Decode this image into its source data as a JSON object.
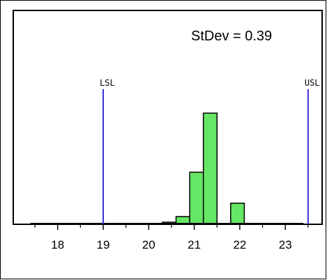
{
  "chart_data": {
    "type": "bar",
    "subtype": "histogram",
    "title": "",
    "xlabel": "",
    "ylabel": "",
    "xlim": [
      17.3,
      23.8
    ],
    "ylim": [
      0,
      100
    ],
    "grid": false,
    "annotation": "StDev = 0.39",
    "bar_color": "#66e666",
    "spec_line_color": "#3a2fd6",
    "spec_limits": [
      {
        "label": "LSL",
        "value": 19.0
      },
      {
        "label": "USL",
        "value": 23.5
      }
    ],
    "x_ticks": [
      {
        "value": 18,
        "label": "18"
      },
      {
        "value": 19,
        "label": "19"
      },
      {
        "value": 20,
        "label": "20"
      },
      {
        "value": 21,
        "label": "21"
      },
      {
        "value": 22,
        "label": "22"
      },
      {
        "value": 23,
        "label": "23"
      }
    ],
    "bins": [
      {
        "start": 20.0,
        "end": 20.3,
        "value": 0.5
      },
      {
        "start": 20.3,
        "end": 20.6,
        "value": 1.5
      },
      {
        "start": 20.6,
        "end": 20.9,
        "value": 5.5
      },
      {
        "start": 20.9,
        "end": 21.2,
        "value": 37
      },
      {
        "start": 21.2,
        "end": 21.5,
        "value": 79
      },
      {
        "start": 21.5,
        "end": 21.8,
        "value": 0
      },
      {
        "start": 21.8,
        "end": 22.1,
        "value": 15
      }
    ],
    "baseline_tail": {
      "from": 17.4,
      "to": 23.4
    }
  }
}
